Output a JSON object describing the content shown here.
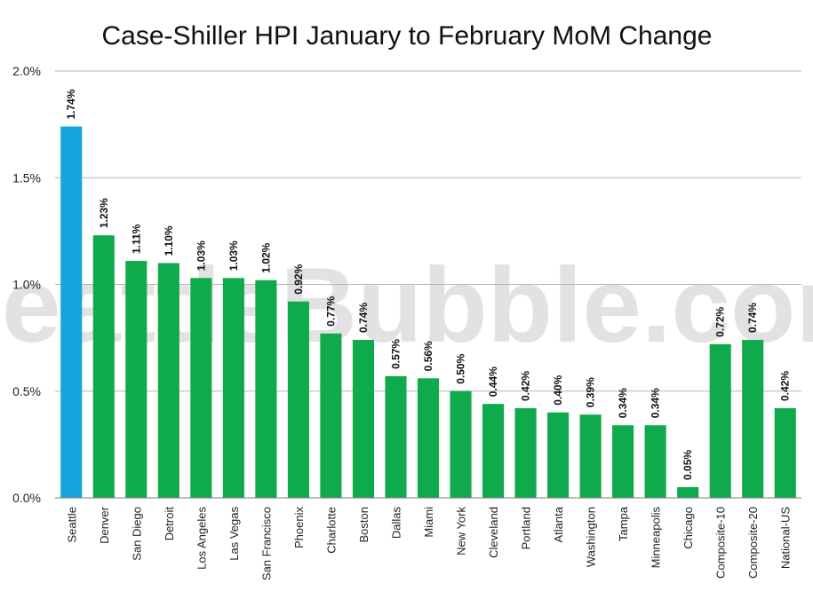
{
  "chart_data": {
    "type": "bar",
    "title": "Case-Shiller HPI January to February MoM Change",
    "xlabel": "",
    "ylabel": "",
    "ylim": [
      0,
      2.0
    ],
    "yticks": [
      "0.0%",
      "0.5%",
      "1.0%",
      "1.5%",
      "2.0%"
    ],
    "grid": true,
    "watermark": "SeattleBubble.com",
    "categories": [
      "Seattle",
      "Denver",
      "San Diego",
      "Detroit",
      "Los Angeles",
      "Las Vegas",
      "San Francisco",
      "Phoenix",
      "Charlotte",
      "Boston",
      "Dallas",
      "Miami",
      "New York",
      "Cleveland",
      "Portland",
      "Atlanta",
      "Washington",
      "Tampa",
      "Minneapolis",
      "Chicago",
      "Composite-10",
      "Composite-20",
      "National-US"
    ],
    "values": [
      1.74,
      1.23,
      1.11,
      1.1,
      1.03,
      1.03,
      1.02,
      0.92,
      0.77,
      0.74,
      0.57,
      0.56,
      0.5,
      0.44,
      0.42,
      0.4,
      0.39,
      0.34,
      0.34,
      0.05,
      0.72,
      0.74,
      0.42
    ],
    "labels": [
      "1.74%",
      "1.23%",
      "1.11%",
      "1.10%",
      "1.03%",
      "1.03%",
      "1.02%",
      "0.92%",
      "0.77%",
      "0.74%",
      "0.57%",
      "0.56%",
      "0.50%",
      "0.44%",
      "0.42%",
      "0.40%",
      "0.39%",
      "0.34%",
      "0.34%",
      "0.05%",
      "0.72%",
      "0.74%",
      "0.42%"
    ],
    "colors": {
      "highlight": "#14a5dc",
      "default": "#0faa4b",
      "grid": "#b5b5b5"
    },
    "highlight_index": 0
  }
}
